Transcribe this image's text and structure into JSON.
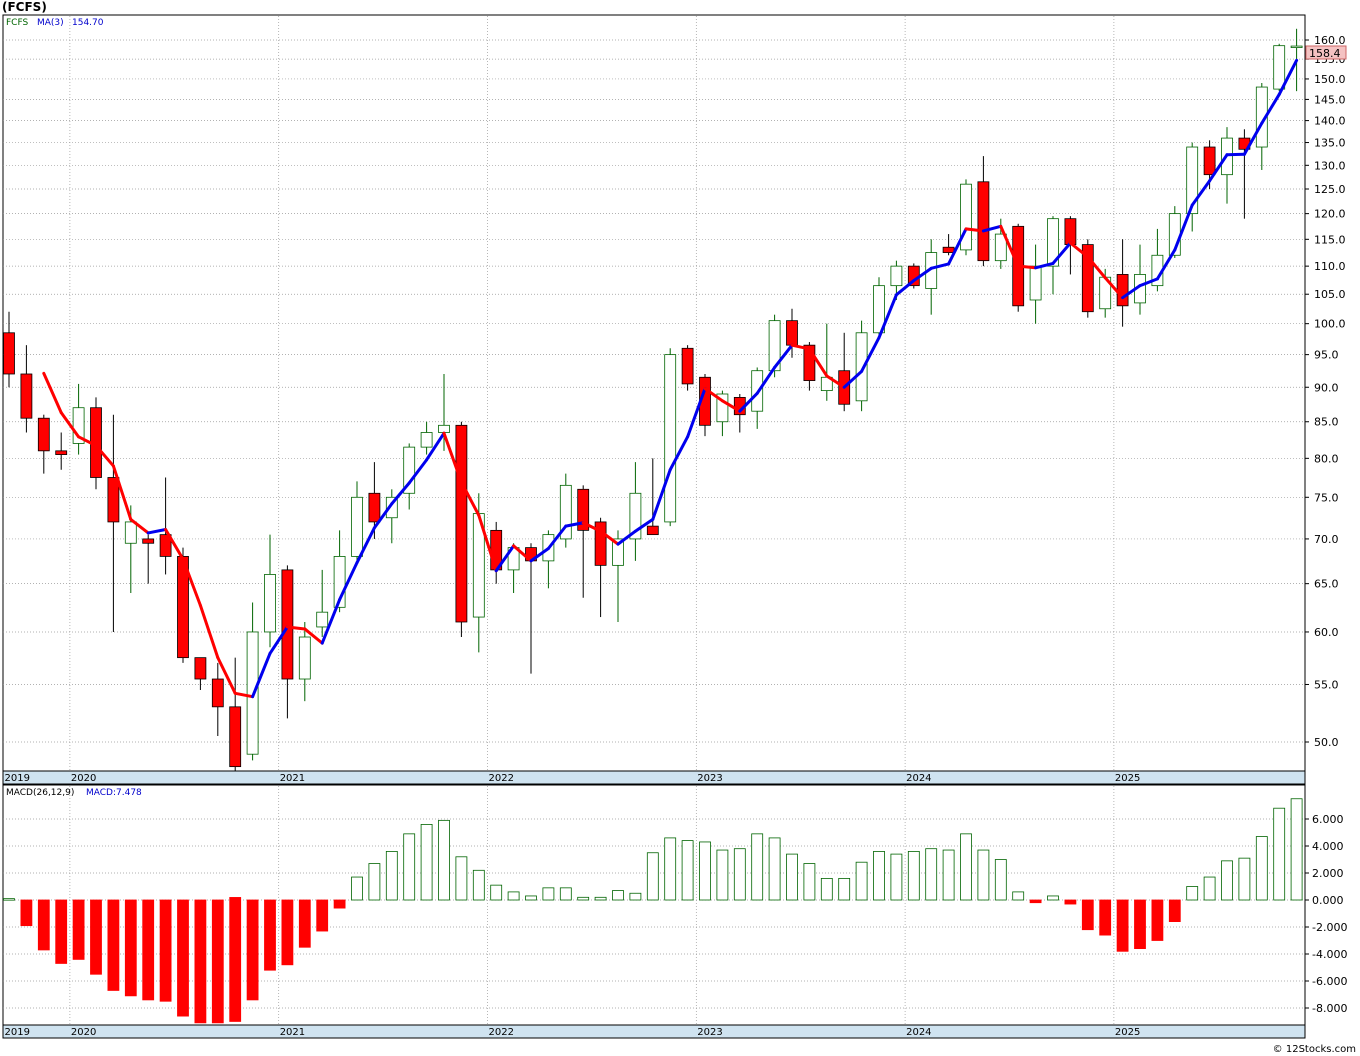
{
  "title": "(FCFS)",
  "legend": {
    "symbol": "FCFS",
    "ma_label": "MA(3)",
    "ma_value": "154.70"
  },
  "last_price_label": "158.4",
  "macd_legend": {
    "label": "MACD(26,12,9)",
    "value_label": "MACD:7.478"
  },
  "watermark": "© 12Stocks.com",
  "colors": {
    "up_candle": "#006400",
    "down_candle": "#ff0000",
    "ma_up": "#0000ee",
    "ma_down": "#ff0000",
    "macd_pos": "#006400",
    "macd_neg": "#ff0000",
    "time_axis_bg": "#cfe3f0",
    "grid": "#999999",
    "ma_legend": "#0000cc"
  },
  "chart_data": {
    "type": "candlestick",
    "interval": "monthly",
    "price_scale": "log",
    "price_ticks": [
      "160.0",
      "155.0",
      "150.0",
      "145.0",
      "140.0",
      "135.0",
      "130.0",
      "125.0",
      "120.0",
      "115.0",
      "110.0",
      "105.0",
      "100.0",
      "95.0",
      "90.0",
      "85.0",
      "80.0",
      "75.0",
      "70.0",
      "65.0",
      "60.0",
      "55.0",
      "50.0"
    ],
    "year_labels": [
      "2019",
      "2020",
      "2021",
      "2022",
      "2023",
      "2024",
      "2025"
    ],
    "year_label_month_index": [
      0,
      4,
      16,
      28,
      40,
      52,
      64
    ],
    "candles": [
      {
        "o": 98.5,
        "h": 102.0,
        "l": 90.0,
        "c": 92.0
      },
      {
        "o": 92.0,
        "h": 96.5,
        "l": 83.5,
        "c": 85.5
      },
      {
        "o": 85.5,
        "h": 86.0,
        "l": 78.0,
        "c": 81.0
      },
      {
        "o": 81.0,
        "h": 83.5,
        "l": 78.5,
        "c": 80.5
      },
      {
        "o": 82.0,
        "h": 90.5,
        "l": 80.5,
        "c": 87.0
      },
      {
        "o": 87.0,
        "h": 88.5,
        "l": 76.0,
        "c": 77.5
      },
      {
        "o": 77.5,
        "h": 86.0,
        "l": 60.0,
        "c": 72.0
      },
      {
        "o": 69.5,
        "h": 74.0,
        "l": 64.0,
        "c": 72.0
      },
      {
        "o": 70.0,
        "h": 70.5,
        "l": 65.0,
        "c": 69.5
      },
      {
        "o": 70.5,
        "h": 77.5,
        "l": 66.0,
        "c": 68.0
      },
      {
        "o": 68.0,
        "h": 69.0,
        "l": 57.0,
        "c": 57.5
      },
      {
        "o": 57.5,
        "h": 57.5,
        "l": 54.5,
        "c": 55.5
      },
      {
        "o": 55.5,
        "h": 57.0,
        "l": 50.5,
        "c": 53.0
      },
      {
        "o": 53.0,
        "h": 57.5,
        "l": 47.5,
        "c": 48.0
      },
      {
        "o": 49.0,
        "h": 63.0,
        "l": 48.5,
        "c": 60.0
      },
      {
        "o": 60.0,
        "h": 70.5,
        "l": 58.5,
        "c": 66.0
      },
      {
        "o": 66.5,
        "h": 67.0,
        "l": 52.0,
        "c": 55.5
      },
      {
        "o": 55.5,
        "h": 61.0,
        "l": 53.5,
        "c": 59.5
      },
      {
        "o": 60.5,
        "h": 66.5,
        "l": 59.5,
        "c": 62.0
      },
      {
        "o": 62.5,
        "h": 71.0,
        "l": 62.0,
        "c": 68.0
      },
      {
        "o": 68.0,
        "h": 77.0,
        "l": 67.0,
        "c": 75.0
      },
      {
        "o": 75.5,
        "h": 79.5,
        "l": 70.0,
        "c": 72.0
      },
      {
        "o": 72.5,
        "h": 76.0,
        "l": 69.5,
        "c": 75.0
      },
      {
        "o": 75.5,
        "h": 82.0,
        "l": 73.5,
        "c": 81.5
      },
      {
        "o": 81.5,
        "h": 85.0,
        "l": 80.5,
        "c": 83.5
      },
      {
        "o": 83.5,
        "h": 92.0,
        "l": 81.0,
        "c": 84.5
      },
      {
        "o": 84.5,
        "h": 85.0,
        "l": 59.5,
        "c": 61.0
      },
      {
        "o": 61.5,
        "h": 75.5,
        "l": 58.0,
        "c": 73.0
      },
      {
        "o": 71.0,
        "h": 72.0,
        "l": 65.0,
        "c": 66.5
      },
      {
        "o": 66.5,
        "h": 69.5,
        "l": 64.0,
        "c": 69.0
      },
      {
        "o": 69.0,
        "h": 69.5,
        "l": 56.0,
        "c": 67.5
      },
      {
        "o": 67.5,
        "h": 71.0,
        "l": 64.5,
        "c": 70.5
      },
      {
        "o": 70.0,
        "h": 78.0,
        "l": 69.0,
        "c": 76.5
      },
      {
        "o": 76.0,
        "h": 76.5,
        "l": 63.5,
        "c": 71.0
      },
      {
        "o": 72.0,
        "h": 72.5,
        "l": 61.5,
        "c": 67.0
      },
      {
        "o": 67.0,
        "h": 71.0,
        "l": 61.0,
        "c": 70.0
      },
      {
        "o": 70.0,
        "h": 79.5,
        "l": 67.5,
        "c": 75.5
      },
      {
        "o": 71.5,
        "h": 80.0,
        "l": 70.5,
        "c": 70.5
      },
      {
        "o": 72.0,
        "h": 96.0,
        "l": 71.5,
        "c": 95.0
      },
      {
        "o": 96.0,
        "h": 96.5,
        "l": 89.5,
        "c": 90.5
      },
      {
        "o": 91.5,
        "h": 92.0,
        "l": 83.0,
        "c": 84.5
      },
      {
        "o": 85.0,
        "h": 89.5,
        "l": 83.0,
        "c": 89.0
      },
      {
        "o": 88.5,
        "h": 89.0,
        "l": 83.5,
        "c": 86.0
      },
      {
        "o": 86.5,
        "h": 93.0,
        "l": 84.0,
        "c": 92.5
      },
      {
        "o": 92.5,
        "h": 101.5,
        "l": 91.5,
        "c": 100.5
      },
      {
        "o": 100.5,
        "h": 102.5,
        "l": 94.5,
        "c": 96.5
      },
      {
        "o": 96.5,
        "h": 97.0,
        "l": 89.5,
        "c": 91.0
      },
      {
        "o": 89.5,
        "h": 100.0,
        "l": 88.0,
        "c": 91.5
      },
      {
        "o": 92.5,
        "h": 98.5,
        "l": 86.5,
        "c": 87.5
      },
      {
        "o": 88.0,
        "h": 100.5,
        "l": 86.5,
        "c": 98.5
      },
      {
        "o": 98.5,
        "h": 108.0,
        "l": 97.5,
        "c": 106.5
      },
      {
        "o": 106.5,
        "h": 111.0,
        "l": 104.0,
        "c": 110.0
      },
      {
        "o": 110.0,
        "h": 110.5,
        "l": 106.0,
        "c": 106.5
      },
      {
        "o": 106.0,
        "h": 115.0,
        "l": 101.5,
        "c": 112.5
      },
      {
        "o": 113.5,
        "h": 116.0,
        "l": 112.0,
        "c": 112.5
      },
      {
        "o": 113.0,
        "h": 127.0,
        "l": 112.0,
        "c": 126.0
      },
      {
        "o": 126.5,
        "h": 132.0,
        "l": 110.0,
        "c": 111.0
      },
      {
        "o": 111.0,
        "h": 119.0,
        "l": 109.5,
        "c": 116.0
      },
      {
        "o": 117.5,
        "h": 118.0,
        "l": 102.0,
        "c": 103.0
      },
      {
        "o": 104.0,
        "h": 114.0,
        "l": 100.0,
        "c": 110.0
      },
      {
        "o": 110.0,
        "h": 119.5,
        "l": 105.0,
        "c": 119.0
      },
      {
        "o": 119.0,
        "h": 119.5,
        "l": 108.5,
        "c": 114.0
      },
      {
        "o": 114.0,
        "h": 115.0,
        "l": 101.0,
        "c": 102.0
      },
      {
        "o": 102.5,
        "h": 109.5,
        "l": 101.0,
        "c": 108.0
      },
      {
        "o": 108.5,
        "h": 115.0,
        "l": 99.5,
        "c": 103.0
      },
      {
        "o": 103.5,
        "h": 114.0,
        "l": 101.5,
        "c": 108.5
      },
      {
        "o": 106.5,
        "h": 117.0,
        "l": 105.5,
        "c": 112.0
      },
      {
        "o": 112.0,
        "h": 121.5,
        "l": 111.5,
        "c": 120.0
      },
      {
        "o": 120.0,
        "h": 135.0,
        "l": 116.5,
        "c": 134.0
      },
      {
        "o": 134.0,
        "h": 135.5,
        "l": 125.0,
        "c": 128.0
      },
      {
        "o": 128.0,
        "h": 138.5,
        "l": 122.0,
        "c": 136.0
      },
      {
        "o": 136.0,
        "h": 138.0,
        "l": 119.0,
        "c": 133.5
      },
      {
        "o": 134.0,
        "h": 149.0,
        "l": 129.0,
        "c": 148.0
      },
      {
        "o": 147.5,
        "h": 159.0,
        "l": 147.0,
        "c": 158.5
      },
      {
        "o": 158.0,
        "h": 163.0,
        "l": 147.0,
        "c": 158.4
      }
    ],
    "ma3": [
      null,
      null,
      92.1,
      86.3,
      82.9,
      81.7,
      79.0,
      72.3,
      70.7,
      71.1,
      67.7,
      62.7,
      57.5,
      54.2,
      53.9,
      57.9,
      60.5,
      60.3,
      58.9,
      63.3,
      67.3,
      71.3,
      74.2,
      76.8,
      79.8,
      83.4,
      76.9,
      72.8,
      66.4,
      69.2,
      67.5,
      68.9,
      71.5,
      71.9,
      70.9,
      69.4,
      70.9,
      72.3,
      78.5,
      82.9,
      89.8,
      88.0,
      86.5,
      89.1,
      93.0,
      96.5,
      95.9,
      91.7,
      90.0,
      92.4,
      97.7,
      104.9,
      107.4,
      109.6,
      110.4,
      117.0,
      116.6,
      117.5,
      110.0,
      109.7,
      110.5,
      114.3,
      111.7,
      107.9,
      104.4,
      106.5,
      107.7,
      113.0,
      121.7,
      126.7,
      132.3,
      132.4,
      139.4,
      146.2,
      154.7
    ],
    "macd": {
      "label": "MACD(26,12,9)",
      "latest": 7.478,
      "ticks": [
        "6.000",
        "4.000",
        "2.000",
        "0.000",
        "-2.000",
        "-4.000",
        "-6.000",
        "-8.000"
      ],
      "values": [
        0.1,
        -1.9,
        -3.7,
        -4.7,
        -4.4,
        -5.5,
        -6.7,
        -7.1,
        -7.4,
        -7.5,
        -8.6,
        -9.1,
        -9.1,
        -9.3,
        -7.4,
        -5.2,
        -4.8,
        -3.5,
        -2.3,
        -0.6,
        1.7,
        2.7,
        3.6,
        4.9,
        5.6,
        5.9,
        3.2,
        2.2,
        1.1,
        0.6,
        0.3,
        0.9,
        0.9,
        0.2,
        0.2,
        0.7,
        0.5,
        3.5,
        4.6,
        4.4,
        4.3,
        3.7,
        3.8,
        4.9,
        4.6,
        3.4,
        2.7,
        1.6,
        1.6,
        2.8,
        3.6,
        3.4,
        3.6,
        3.8,
        3.7,
        4.9,
        3.7,
        3.0,
        0.6,
        -0.2,
        0.3,
        -0.3,
        -2.2,
        -2.6,
        -3.8,
        -3.6,
        -3.0,
        -1.6,
        1.0,
        1.7,
        2.9,
        3.1,
        4.7,
        6.8,
        7.5
      ]
    }
  }
}
